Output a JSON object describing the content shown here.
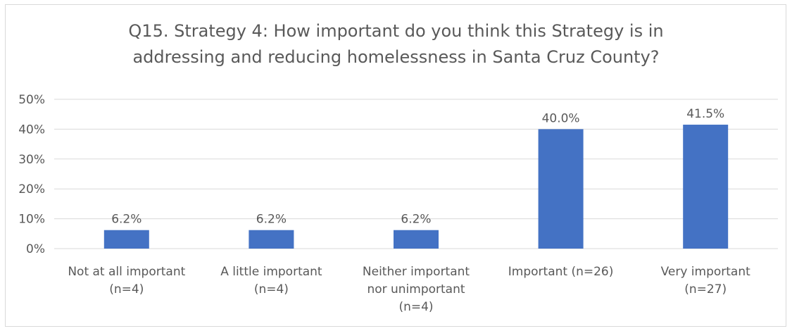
{
  "chart_data": {
    "type": "bar",
    "title": "Q15. Strategy 4: How important do you think this Strategy is in addressing and reducing homelessness in Santa Cruz County?",
    "categories": [
      [
        "Not at all important",
        "(n=4)"
      ],
      [
        "A little important",
        "(n=4)"
      ],
      [
        "Neither important",
        "nor unimportant",
        "(n=4)"
      ],
      [
        "Important (n=26)"
      ],
      [
        "Very important",
        "(n=27)"
      ]
    ],
    "values": [
      6.2,
      6.2,
      6.2,
      40.0,
      41.5
    ],
    "data_labels": [
      "6.2%",
      "6.2%",
      "6.2%",
      "40.0%",
      "41.5%"
    ],
    "y_ticks": [
      "0%",
      "10%",
      "20%",
      "30%",
      "40%",
      "50%"
    ],
    "ylim": [
      0,
      50
    ],
    "grid": true,
    "legend": "none",
    "bar_color": "#4472c4",
    "xlabel": "",
    "ylabel": ""
  }
}
